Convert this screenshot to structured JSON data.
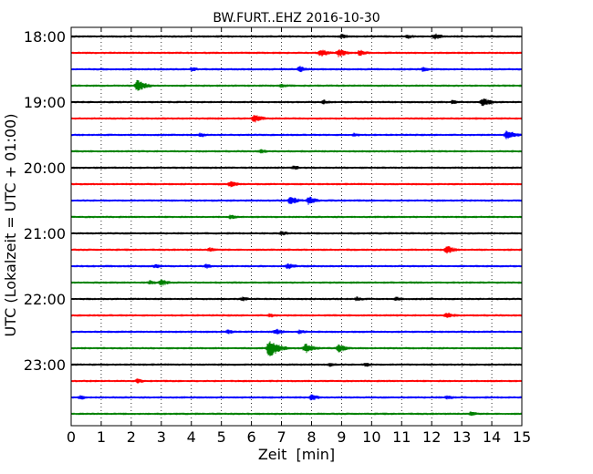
{
  "chart_data": {
    "type": "line",
    "title": "BW.FURT..EHZ 2016-10-30",
    "xlabel": "Zeit  [min]",
    "ylabel": "UTC (Lokalzeit = UTC + 01:00)",
    "xlim": [
      0,
      15
    ],
    "x_ticks": [
      "0",
      "1",
      "2",
      "3",
      "4",
      "5",
      "6",
      "7",
      "8",
      "9",
      "10",
      "11",
      "12",
      "13",
      "14",
      "15"
    ],
    "y_ticks": [
      "18:00",
      "19:00",
      "20:00",
      "21:00",
      "22:00",
      "23:00"
    ],
    "grid": true,
    "series_colors": [
      "#000000",
      "#ff0000",
      "#0000ff",
      "#008000"
    ],
    "traces": [
      {
        "start": "18:00",
        "color": "#000000",
        "events": [
          {
            "t": 9.0,
            "a": 3
          },
          {
            "t": 11.2,
            "a": 3
          },
          {
            "t": 12.1,
            "a": 4
          }
        ]
      },
      {
        "start": "18:15",
        "color": "#ff0000",
        "events": [
          {
            "t": 8.3,
            "a": 5
          },
          {
            "t": 8.9,
            "a": 5
          },
          {
            "t": 9.6,
            "a": 4
          }
        ]
      },
      {
        "start": "18:30",
        "color": "#0000ff",
        "events": [
          {
            "t": 4.0,
            "a": 3
          },
          {
            "t": 7.6,
            "a": 4
          },
          {
            "t": 11.7,
            "a": 3
          }
        ]
      },
      {
        "start": "18:45",
        "color": "#008000",
        "events": [
          {
            "t": 2.2,
            "a": 7
          },
          {
            "t": 7.0,
            "a": 3
          }
        ]
      },
      {
        "start": "19:00",
        "color": "#000000",
        "events": [
          {
            "t": 8.4,
            "a": 3
          },
          {
            "t": 12.7,
            "a": 3
          },
          {
            "t": 13.7,
            "a": 5
          }
        ]
      },
      {
        "start": "19:15",
        "color": "#ff0000",
        "events": [
          {
            "t": 6.1,
            "a": 5
          }
        ]
      },
      {
        "start": "19:30",
        "color": "#0000ff",
        "events": [
          {
            "t": 4.3,
            "a": 3
          },
          {
            "t": 9.4,
            "a": 3
          },
          {
            "t": 14.5,
            "a": 6
          }
        ]
      },
      {
        "start": "19:45",
        "color": "#008000",
        "events": [
          {
            "t": 6.3,
            "a": 3
          }
        ]
      },
      {
        "start": "20:00",
        "color": "#000000",
        "events": [
          {
            "t": 7.4,
            "a": 3
          }
        ]
      },
      {
        "start": "20:15",
        "color": "#ff0000",
        "events": [
          {
            "t": 5.3,
            "a": 4
          }
        ]
      },
      {
        "start": "20:30",
        "color": "#0000ff",
        "events": [
          {
            "t": 7.3,
            "a": 5
          },
          {
            "t": 7.9,
            "a": 5
          }
        ]
      },
      {
        "start": "20:45",
        "color": "#008000",
        "events": [
          {
            "t": 5.3,
            "a": 3
          }
        ]
      },
      {
        "start": "21:00",
        "color": "#000000",
        "events": [
          {
            "t": 7.0,
            "a": 3
          }
        ]
      },
      {
        "start": "21:15",
        "color": "#ff0000",
        "events": [
          {
            "t": 4.6,
            "a": 3
          },
          {
            "t": 12.5,
            "a": 5
          }
        ]
      },
      {
        "start": "21:30",
        "color": "#0000ff",
        "events": [
          {
            "t": 2.8,
            "a": 3
          },
          {
            "t": 4.5,
            "a": 3
          },
          {
            "t": 7.2,
            "a": 4
          }
        ]
      },
      {
        "start": "21:45",
        "color": "#008000",
        "events": [
          {
            "t": 2.6,
            "a": 3
          },
          {
            "t": 3.0,
            "a": 4
          }
        ]
      },
      {
        "start": "22:00",
        "color": "#000000",
        "events": [
          {
            "t": 5.7,
            "a": 3
          },
          {
            "t": 9.5,
            "a": 3
          },
          {
            "t": 10.8,
            "a": 3
          }
        ]
      },
      {
        "start": "22:15",
        "color": "#ff0000",
        "events": [
          {
            "t": 6.6,
            "a": 3
          },
          {
            "t": 12.5,
            "a": 4
          }
        ]
      },
      {
        "start": "22:30",
        "color": "#0000ff",
        "events": [
          {
            "t": 5.2,
            "a": 3
          },
          {
            "t": 6.8,
            "a": 4
          },
          {
            "t": 7.6,
            "a": 3
          }
        ]
      },
      {
        "start": "22:45",
        "color": "#008000",
        "events": [
          {
            "t": 6.6,
            "a": 11
          },
          {
            "t": 7.8,
            "a": 6
          },
          {
            "t": 8.9,
            "a": 5
          }
        ]
      },
      {
        "start": "23:00",
        "color": "#000000",
        "events": [
          {
            "t": 8.6,
            "a": 3
          },
          {
            "t": 9.8,
            "a": 3
          }
        ]
      },
      {
        "start": "23:15",
        "color": "#ff0000",
        "events": [
          {
            "t": 2.2,
            "a": 3
          }
        ]
      },
      {
        "start": "23:30",
        "color": "#0000ff",
        "events": [
          {
            "t": 0.3,
            "a": 3
          },
          {
            "t": 8.0,
            "a": 4
          },
          {
            "t": 12.5,
            "a": 3
          }
        ]
      },
      {
        "start": "23:45",
        "color": "#008000",
        "events": [
          {
            "t": 13.3,
            "a": 3
          }
        ]
      }
    ]
  }
}
